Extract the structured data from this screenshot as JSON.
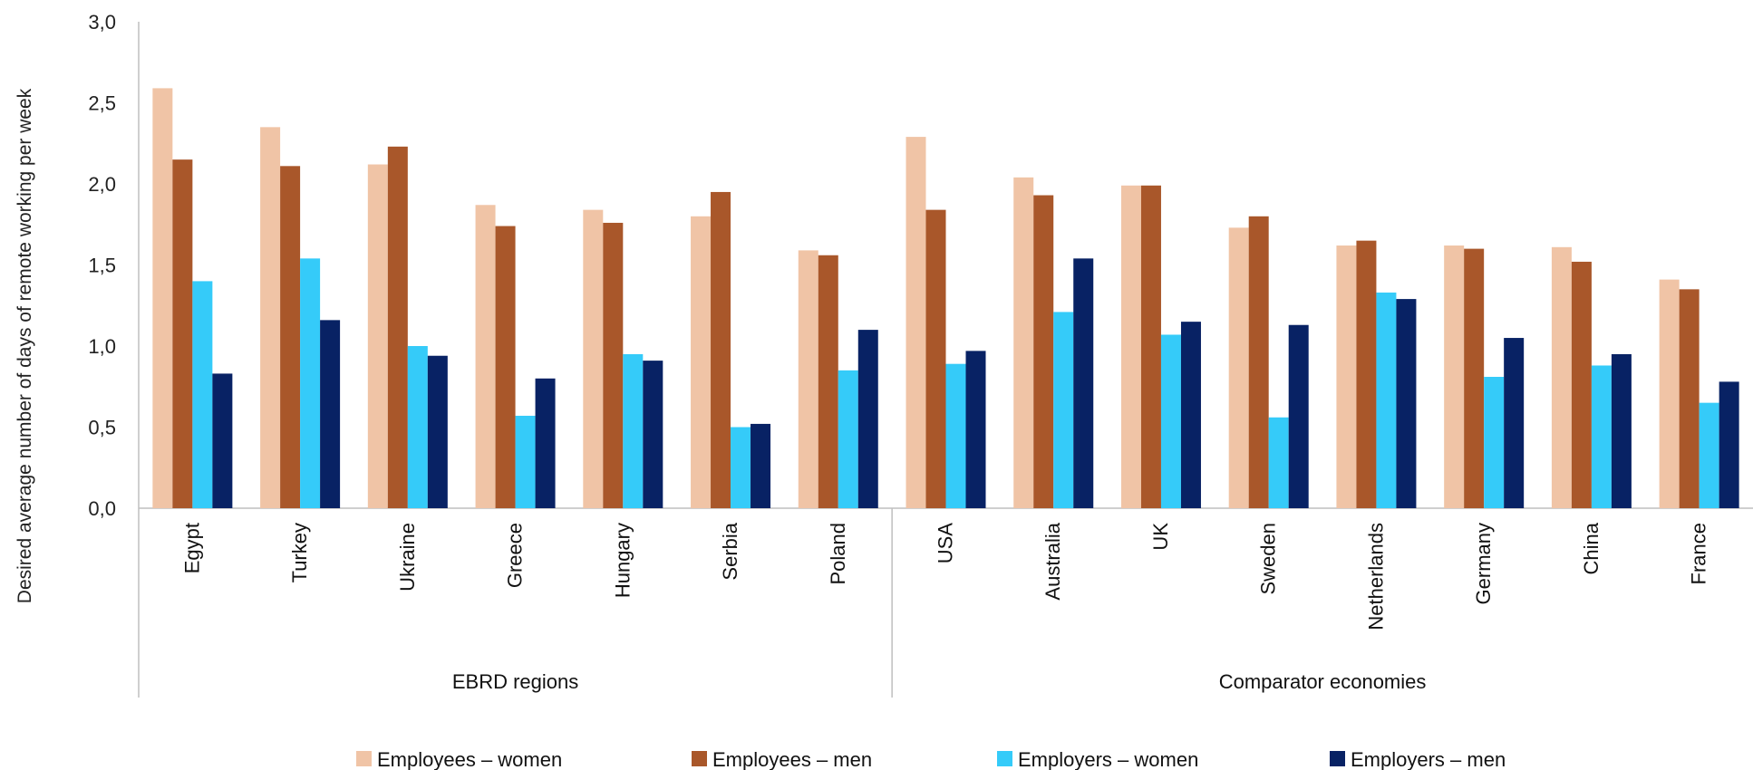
{
  "chart_data": {
    "type": "bar",
    "ylabel": "Desired average number of days of remote working per week",
    "ylim": [
      0,
      3.0
    ],
    "yticks": [
      "0,0",
      "0,5",
      "1,0",
      "1,5",
      "2,0",
      "2,5",
      "3,0"
    ],
    "grid": false,
    "legend_position": "bottom",
    "categories": [
      "Egypt",
      "Turkey",
      "Ukraine",
      "Greece",
      "Hungary",
      "Serbia",
      "Poland",
      "USA",
      "Australia",
      "UK",
      "Sweden",
      "Netherlands",
      "Germany",
      "China",
      "France"
    ],
    "groups": [
      {
        "label": "EBRD regions",
        "count": 7
      },
      {
        "label": "Comparator economies",
        "count": 8
      }
    ],
    "series": [
      {
        "name": "Employees – women",
        "color": "#F0C4A6",
        "values": [
          2.59,
          2.35,
          2.12,
          1.87,
          1.84,
          1.8,
          1.59,
          2.29,
          2.04,
          1.99,
          1.73,
          1.62,
          1.62,
          1.61,
          1.41
        ]
      },
      {
        "name": "Employees – men",
        "color": "#A9572A",
        "values": [
          2.15,
          2.11,
          2.23,
          1.74,
          1.76,
          1.95,
          1.56,
          1.84,
          1.93,
          1.99,
          1.8,
          1.65,
          1.6,
          1.52,
          1.35
        ]
      },
      {
        "name": "Employers – women",
        "color": "#35CBF9",
        "values": [
          1.4,
          1.54,
          1.0,
          0.57,
          0.95,
          0.5,
          0.85,
          0.89,
          1.21,
          1.07,
          0.56,
          1.33,
          0.81,
          0.88,
          0.65
        ]
      },
      {
        "name": "Employers – men",
        "color": "#082264",
        "values": [
          0.83,
          1.16,
          0.94,
          0.8,
          0.91,
          0.52,
          1.1,
          0.97,
          1.54,
          1.15,
          1.13,
          1.29,
          1.05,
          0.95,
          0.78
        ]
      }
    ]
  }
}
